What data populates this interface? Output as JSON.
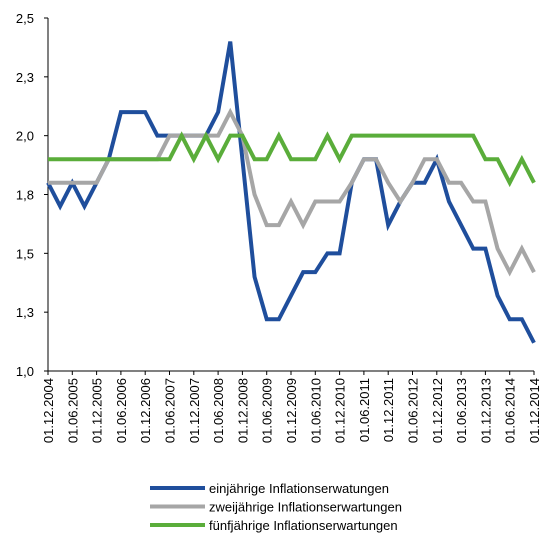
{
  "chart_data": {
    "type": "line",
    "categories": [
      "01.12.2004",
      null,
      "01.06.2005",
      null,
      "01.12.2005",
      null,
      "01.06.2006",
      null,
      "01.12.2006",
      null,
      "01.06.2007",
      null,
      "01.12.2007",
      null,
      "01.06.2008",
      null,
      "01.12.2008",
      null,
      "01.06.2009",
      null,
      "01.12.2009",
      null,
      "01.06.2010",
      null,
      "01.12.2010",
      null,
      "01.06.2011",
      null,
      "01.12.2011",
      null,
      "01.06.2012",
      null,
      "01.12.2012",
      null,
      "01.06.2013",
      null,
      "01.12.2013",
      null,
      "01.06.2014",
      null,
      "01.12.2014"
    ],
    "series": [
      {
        "name": "einjährige Inflationserwatungen",
        "color": "#1f4e9c",
        "values": [
          1.8,
          1.7,
          1.8,
          1.7,
          1.8,
          1.9,
          2.1,
          2.1,
          2.1,
          2.0,
          2.0,
          2.0,
          2.0,
          2.0,
          2.1,
          2.4,
          1.9,
          1.4,
          1.22,
          1.22,
          1.32,
          1.42,
          1.42,
          1.5,
          1.5,
          1.8,
          1.9,
          1.9,
          1.62,
          1.72,
          1.8,
          1.8,
          1.9,
          1.72,
          1.62,
          1.52,
          1.52,
          1.32,
          1.22,
          1.22,
          1.12
        ]
      },
      {
        "name": "zweijährige Inflationserwartungen",
        "color": "#a6a6a6",
        "values": [
          1.8,
          1.8,
          1.8,
          1.8,
          1.8,
          1.9,
          1.9,
          1.9,
          1.9,
          1.9,
          2.0,
          2.0,
          2.0,
          2.0,
          2.0,
          2.1,
          2.0,
          1.75,
          1.62,
          1.62,
          1.72,
          1.62,
          1.72,
          1.72,
          1.72,
          1.8,
          1.9,
          1.9,
          1.8,
          1.72,
          1.8,
          1.9,
          1.9,
          1.8,
          1.8,
          1.72,
          1.72,
          1.52,
          1.42,
          1.52,
          1.42
        ]
      },
      {
        "name": "fünfjährige Inflationserwartungen",
        "color": "#5aad3a",
        "values": [
          1.9,
          1.9,
          1.9,
          1.9,
          1.9,
          1.9,
          1.9,
          1.9,
          1.9,
          1.9,
          1.9,
          2.0,
          1.9,
          2.0,
          1.9,
          2.0,
          2.0,
          1.9,
          1.9,
          2.0,
          1.9,
          1.9,
          1.9,
          2.0,
          1.9,
          2.0,
          2.0,
          2.0,
          2.0,
          2.0,
          2.0,
          2.0,
          2.0,
          2.0,
          2.0,
          2.0,
          1.9,
          1.9,
          1.8,
          1.9,
          1.8
        ]
      }
    ],
    "ylim": [
      1.0,
      2.5
    ],
    "yticks": [
      {
        "value": 1.0,
        "label": "1,0"
      },
      {
        "value": 1.25,
        "label": "1,3"
      },
      {
        "value": 1.5,
        "label": "1,5"
      },
      {
        "value": 1.75,
        "label": "1,8"
      },
      {
        "value": 2.0,
        "label": "2,0"
      },
      {
        "value": 2.25,
        "label": "2,3"
      },
      {
        "value": 2.5,
        "label": "2,5"
      }
    ],
    "grid": false,
    "legend": "bottom"
  }
}
